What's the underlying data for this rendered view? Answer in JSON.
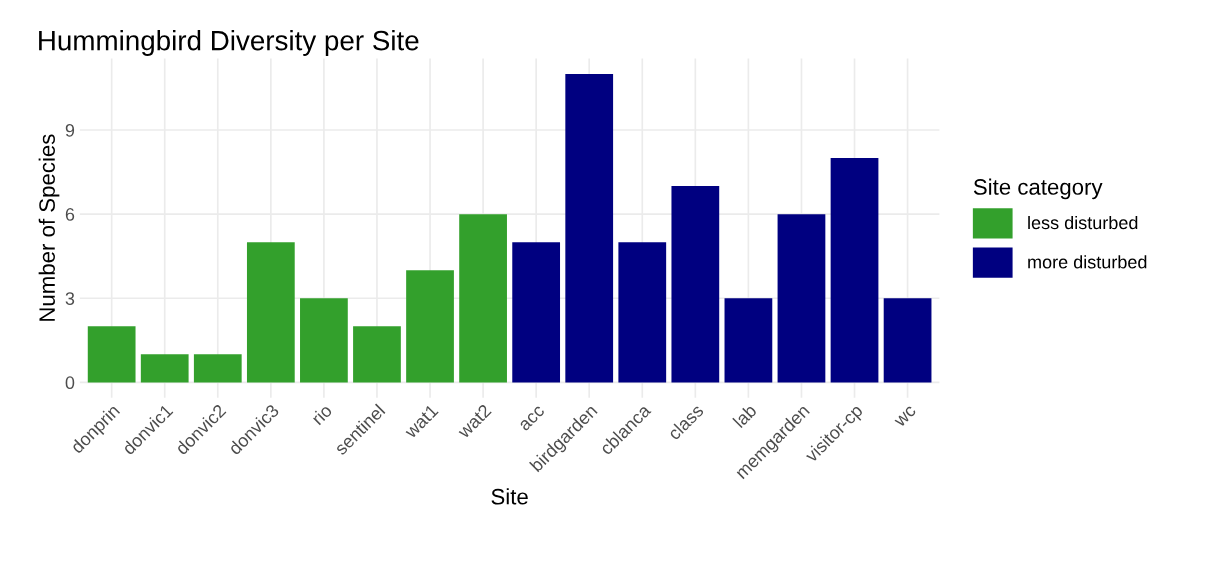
{
  "chart_data": {
    "type": "bar",
    "title": "Hummingbird Diversity per Site",
    "xlabel": "Site",
    "ylabel": "Number of Species",
    "legend_title": "Site category",
    "categories": [
      "donprin",
      "donvic1",
      "donvic2",
      "donvic3",
      "rio",
      "sentinel",
      "wat1",
      "wat2",
      "acc",
      "birdgarden",
      "cblanca",
      "class",
      "lab",
      "memgarden",
      "visitor-cp",
      "wc"
    ],
    "series": [
      {
        "name": "less disturbed",
        "color": "#33a02c",
        "values": [
          2,
          1,
          1,
          5,
          3,
          2,
          4,
          6,
          null,
          null,
          null,
          null,
          null,
          null,
          null,
          null
        ]
      },
      {
        "name": "more disturbed",
        "color": "#000080",
        "values": [
          null,
          null,
          null,
          null,
          null,
          null,
          null,
          null,
          5,
          11,
          5,
          7,
          3,
          6,
          8,
          3
        ]
      }
    ],
    "ylim": [
      -0.55,
      11.55
    ],
    "yticks": [
      0,
      3,
      6,
      9
    ],
    "grid": true,
    "legend": "right"
  }
}
